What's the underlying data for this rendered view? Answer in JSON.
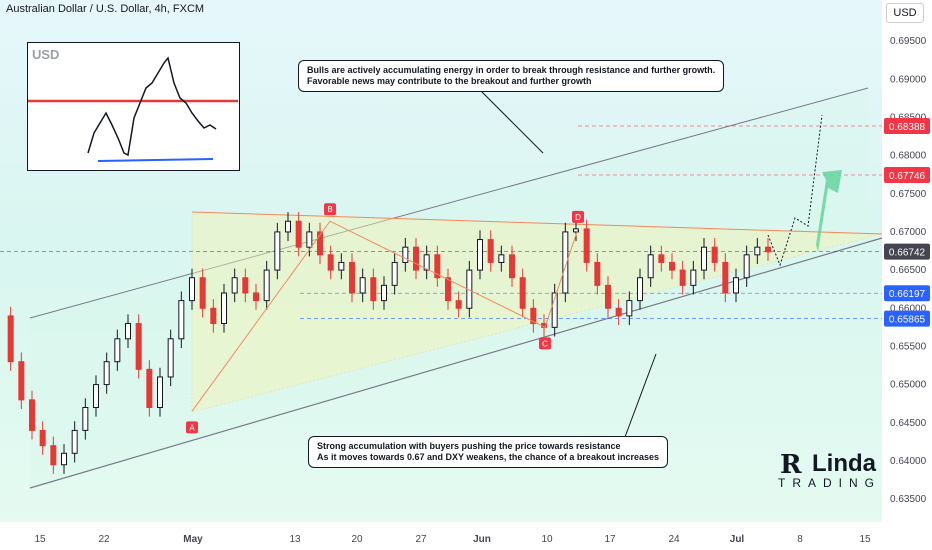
{
  "header": {
    "title": "Australian Dollar / U.S. Dollar, 4h, FXCM",
    "currency": "USD"
  },
  "annotations": {
    "top": [
      "Bulls are actively accumulating energy in order to break through resistance and further growth.",
      "Favorable news may contribute to the breakout and further growth"
    ],
    "bottom": [
      "Strong accumulation with buyers pushing the price towards resistance",
      "As it moves towards 0.67 and DXY weakens, the chance of a breakout increases"
    ],
    "points": [
      "A",
      "B",
      "C",
      "D"
    ]
  },
  "logo": {
    "name": "Linda",
    "sub": "TRADING"
  },
  "colors": {
    "candle_up": "#131722",
    "candle_down": "#e53935",
    "accent_green": "#5fd39a",
    "price_label": "#434651",
    "target_label": "#f23645",
    "support_label": "#2962ff"
  },
  "chart_data": {
    "type": "candlestick",
    "title": "Australian Dollar / U.S. Dollar, 4h, FXCM",
    "x_ticks": [
      "15",
      "22",
      "May",
      "13",
      "20",
      "27",
      "Jun",
      "10",
      "17",
      "24",
      "Jul",
      "8",
      "15"
    ],
    "y_ticks": [
      "0.69500",
      "0.69000",
      "0.68500",
      "0.68000",
      "0.67500",
      "0.67000",
      "0.66500",
      "0.66000",
      "0.65500",
      "0.65000",
      "0.64500",
      "0.64000",
      "0.63500"
    ],
    "ylim": [
      0.632,
      0.6975
    ],
    "price_labels": [
      {
        "label": "0.68388",
        "value": 0.68388,
        "kind": "target"
      },
      {
        "label": "0.67746",
        "value": 0.67746,
        "kind": "target"
      },
      {
        "label": "0.66742",
        "value": 0.66742,
        "kind": "last"
      },
      {
        "label": "0.66197",
        "value": 0.66197,
        "kind": "support"
      },
      {
        "label": "0.65865",
        "value": 0.65865,
        "kind": "support"
      }
    ],
    "pivots": [
      {
        "label": "A",
        "date": "Apr 30",
        "price": 0.6465
      },
      {
        "label": "B",
        "date": "May 16",
        "price": 0.6714
      },
      {
        "label": "C",
        "date": "Jun 10",
        "price": 0.6575
      },
      {
        "label": "D",
        "date": "Jun 13",
        "price": 0.6704
      }
    ],
    "path": [
      0.659,
      0.653,
      0.648,
      0.644,
      0.642,
      0.6395,
      0.641,
      0.644,
      0.647,
      0.65,
      0.653,
      0.656,
      0.658,
      0.652,
      0.647,
      0.651,
      0.656,
      0.661,
      0.664,
      0.66,
      0.658,
      0.662,
      0.664,
      0.662,
      0.661,
      0.665,
      0.67,
      0.6714,
      0.668,
      0.67,
      0.667,
      0.665,
      0.666,
      0.662,
      0.664,
      0.661,
      0.663,
      0.666,
      0.668,
      0.665,
      0.667,
      0.664,
      0.661,
      0.66,
      0.665,
      0.669,
      0.666,
      0.667,
      0.664,
      0.66,
      0.658,
      0.6575,
      0.662,
      0.67,
      0.6704,
      0.666,
      0.663,
      0.66,
      0.659,
      0.661,
      0.664,
      0.667,
      0.666,
      0.665,
      0.663,
      0.665,
      0.668,
      0.666,
      0.662,
      0.664,
      0.667,
      0.668,
      0.6674
    ]
  }
}
